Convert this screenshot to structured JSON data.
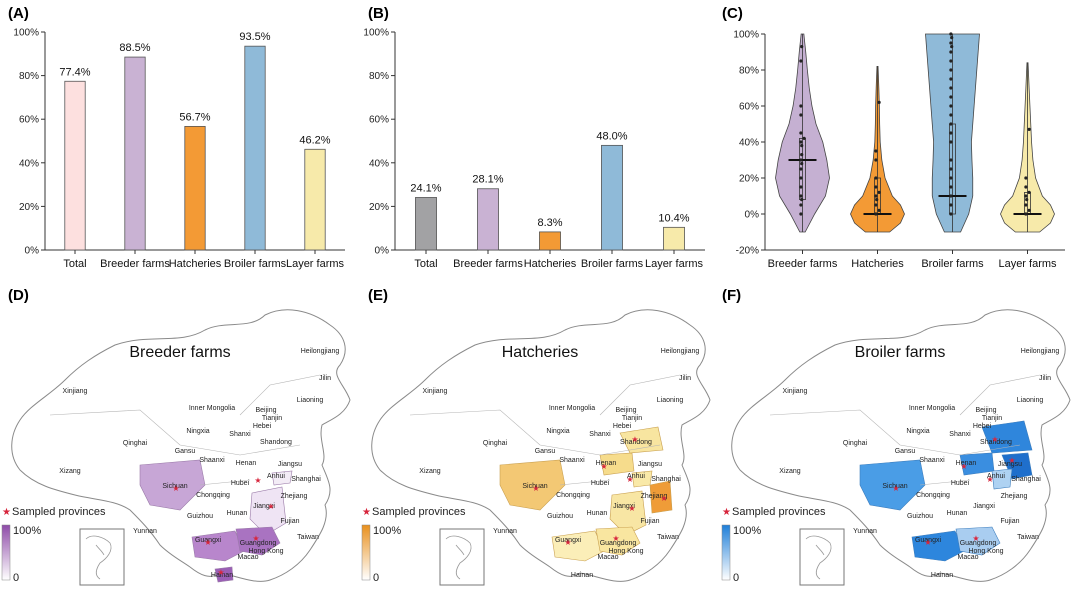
{
  "panels": {
    "A": "(A)",
    "B": "(B)",
    "C": "(C)",
    "D": "(D)",
    "E": "(E)",
    "F": "(F)"
  },
  "chart_data": [
    {
      "id": "A",
      "type": "bar",
      "title": "",
      "categories": [
        "Total",
        "Breeder farms",
        "Hatcheries",
        "Broiler farms",
        "Layer farms"
      ],
      "values": [
        77.4,
        88.5,
        56.7,
        93.5,
        46.2
      ],
      "labels": [
        "77.4%",
        "88.5%",
        "56.7%",
        "93.5%",
        "46.2%"
      ],
      "colors": [
        "#fde0df",
        "#c9b2d3",
        "#f39a35",
        "#8fbad8",
        "#f7eaaa"
      ],
      "ylim": [
        0,
        100
      ],
      "yticks": [
        "0%",
        "20%",
        "40%",
        "60%",
        "80%",
        "100%"
      ],
      "ytick_values": [
        0,
        20,
        40,
        60,
        80,
        100
      ]
    },
    {
      "id": "B",
      "type": "bar",
      "title": "",
      "categories": [
        "Total",
        "Breeder farms",
        "Hatcheries",
        "Broiler farms",
        "Layer farms"
      ],
      "values": [
        24.1,
        28.1,
        8.3,
        48.0,
        10.4
      ],
      "labels": [
        "24.1%",
        "28.1%",
        "8.3%",
        "48.0%",
        "10.4%"
      ],
      "colors": [
        "#a2a2a4",
        "#c9b2d3",
        "#f39a35",
        "#8fbad8",
        "#f7eaaa"
      ],
      "ylim": [
        0,
        100
      ],
      "yticks": [
        "0%",
        "20%",
        "40%",
        "60%",
        "80%",
        "100%"
      ],
      "ytick_values": [
        0,
        20,
        40,
        60,
        80,
        100
      ]
    },
    {
      "id": "C",
      "type": "violin",
      "categories": [
        "Breeder farms",
        "Hatcheries",
        "Broiler farms",
        "Layer farms"
      ],
      "colors": [
        "#c5b0d2",
        "#f39a35",
        "#8fbad8",
        "#f7eaaa"
      ],
      "ylim": [
        -20,
        100
      ],
      "yticks": [
        "-20%",
        "0%",
        "20%",
        "40%",
        "60%",
        "80%",
        "100%"
      ],
      "ytick_values": [
        -20,
        0,
        20,
        40,
        60,
        80,
        100
      ],
      "violins": [
        {
          "min": -10,
          "max": 100,
          "q1": 8,
          "median": 30,
          "q3": 42,
          "profile": [
            [
              -10,
              0.1
            ],
            [
              0,
              0.45
            ],
            [
              10,
              0.85
            ],
            [
              20,
              1.0
            ],
            [
              30,
              0.9
            ],
            [
              40,
              0.75
            ],
            [
              50,
              0.5
            ],
            [
              60,
              0.35
            ],
            [
              70,
              0.25
            ],
            [
              80,
              0.18
            ],
            [
              90,
              0.12
            ],
            [
              100,
              0.05
            ]
          ],
          "points": [
            0,
            5,
            8,
            10,
            15,
            20,
            25,
            28,
            30,
            33,
            38,
            40,
            42,
            45,
            55,
            60,
            85,
            93
          ]
        },
        {
          "min": -10,
          "max": 82,
          "q1": 0,
          "median": 0,
          "q3": 20,
          "profile": [
            [
              -10,
              0.45
            ],
            [
              -5,
              0.85
            ],
            [
              0,
              1.0
            ],
            [
              5,
              0.85
            ],
            [
              10,
              0.55
            ],
            [
              20,
              0.28
            ],
            [
              30,
              0.16
            ],
            [
              40,
              0.1
            ],
            [
              50,
              0.08
            ],
            [
              60,
              0.07
            ],
            [
              70,
              0.05
            ],
            [
              82,
              0.02
            ]
          ],
          "points": [
            0,
            0,
            2,
            5,
            8,
            10,
            12,
            15,
            20,
            30,
            35,
            62
          ]
        },
        {
          "min": -10,
          "max": 100,
          "q1": 0,
          "median": 10,
          "q3": 50,
          "profile": [
            [
              -10,
              0.3
            ],
            [
              0,
              0.6
            ],
            [
              10,
              0.75
            ],
            [
              20,
              0.75
            ],
            [
              30,
              0.72
            ],
            [
              40,
              0.7
            ],
            [
              50,
              0.75
            ],
            [
              60,
              0.8
            ],
            [
              70,
              0.85
            ],
            [
              80,
              0.9
            ],
            [
              90,
              0.95
            ],
            [
              100,
              1.0
            ]
          ],
          "points": [
            0,
            5,
            10,
            15,
            20,
            25,
            30,
            40,
            45,
            50,
            55,
            60,
            65,
            70,
            75,
            80,
            85,
            90,
            93,
            95,
            98,
            100
          ]
        },
        {
          "min": -10,
          "max": 84,
          "q1": 0,
          "median": 0,
          "q3": 12,
          "profile": [
            [
              -10,
              0.45
            ],
            [
              -5,
              0.85
            ],
            [
              0,
              1.0
            ],
            [
              5,
              0.85
            ],
            [
              10,
              0.55
            ],
            [
              20,
              0.3
            ],
            [
              30,
              0.2
            ],
            [
              40,
              0.15
            ],
            [
              50,
              0.12
            ],
            [
              60,
              0.09
            ],
            [
              70,
              0.06
            ],
            [
              84,
              0.02
            ]
          ],
          "points": [
            0,
            0,
            2,
            5,
            8,
            10,
            12,
            15,
            20,
            47
          ]
        }
      ]
    }
  ],
  "maps": [
    {
      "id": "D",
      "title": "Breeder farms",
      "legend_label": "Sampled provinces",
      "scale_top": "100%",
      "scale_bottom": "0",
      "color": "#8e4ba8"
    },
    {
      "id": "E",
      "title": "Hatcheries",
      "legend_label": "Sampled provinces",
      "scale_top": "100%",
      "scale_bottom": "0",
      "color": "#e8901e"
    },
    {
      "id": "F",
      "title": "Broiler farms",
      "legend_label": "Sampled provinces",
      "scale_top": "100%",
      "scale_bottom": "0",
      "color": "#1f7fd8"
    }
  ],
  "provinces": [
    "Heilongjiang",
    "Jilin",
    "Liaoning",
    "Xinjiang",
    "Inner Mongolia",
    "Beijing",
    "Tianjin",
    "Hebei",
    "Ningxia",
    "Shanxi",
    "Shandong",
    "Qinghai",
    "Gansu",
    "Shaanxi",
    "Henan",
    "Jiangsu",
    "Xizang",
    "Shanghai",
    "Sichuan",
    "Chongqing",
    "Hubei",
    "Anhui",
    "Zhejiang",
    "Jiangxi",
    "Guizhou",
    "Hunan",
    "Fujian",
    "Yunnan",
    "Guangxi",
    "Guangdong",
    "Taiwan",
    "Hong Kong",
    "Macao",
    "Hainan"
  ]
}
